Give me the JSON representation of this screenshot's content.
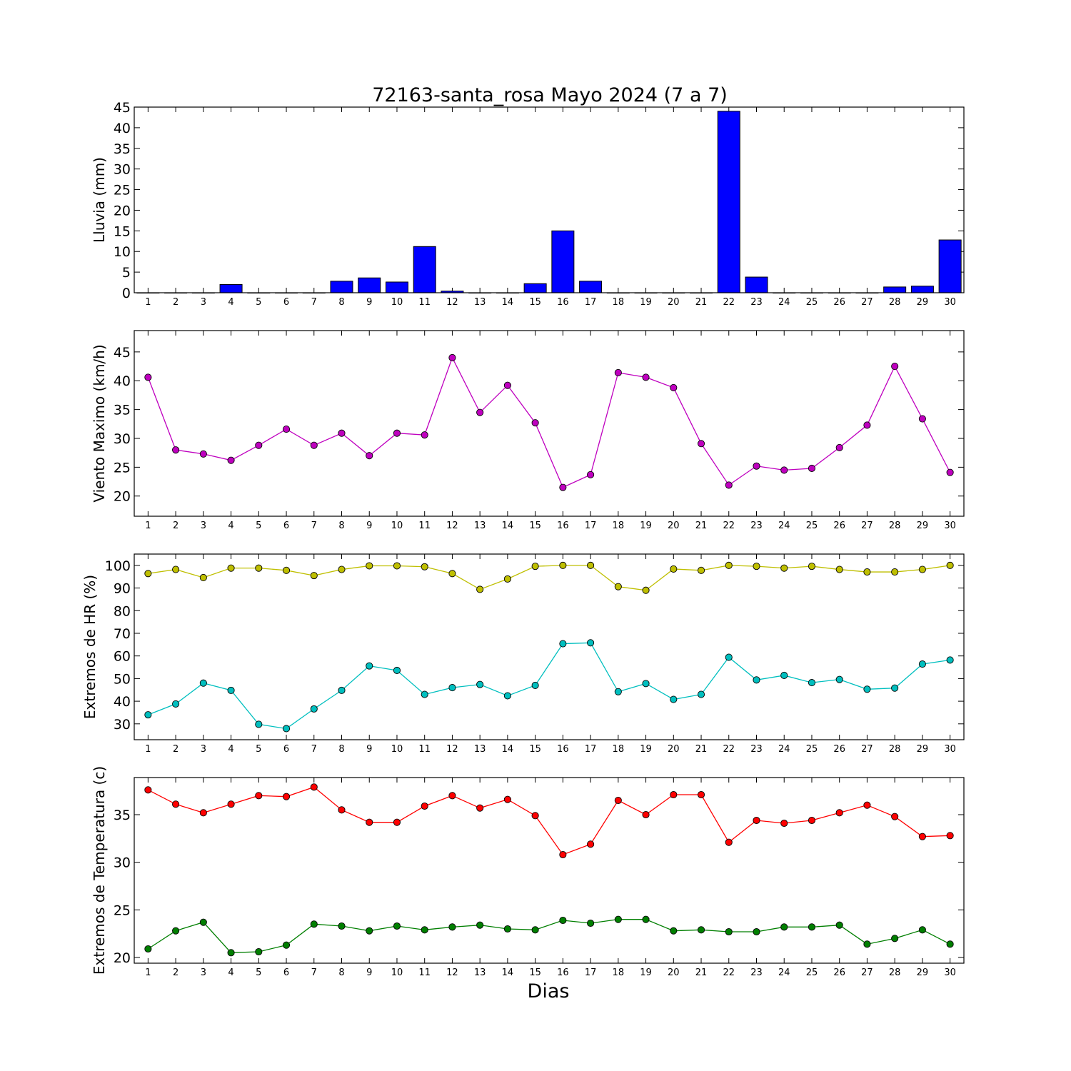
{
  "title": "72163-santa_rosa Mayo 2024  (7 a 7)",
  "xlabel": "Dias",
  "days": [
    1,
    2,
    3,
    4,
    5,
    6,
    7,
    8,
    9,
    10,
    11,
    12,
    13,
    14,
    15,
    16,
    17,
    18,
    19,
    20,
    21,
    22,
    23,
    24,
    25,
    26,
    27,
    28,
    29,
    30
  ],
  "chart_data": [
    {
      "type": "bar",
      "ylabel": "Lluvia (mm)",
      "ylim": [
        0,
        45
      ],
      "yticks": [
        0,
        5,
        10,
        15,
        20,
        25,
        30,
        35,
        40,
        45
      ],
      "series": [
        {
          "color": "#0000ff",
          "values": [
            0,
            0,
            0,
            2,
            0,
            0,
            0,
            2.8,
            3.6,
            2.6,
            11.2,
            0.4,
            0,
            0,
            2.2,
            15,
            2.8,
            0,
            0,
            0,
            0,
            44,
            3.8,
            0,
            0,
            0,
            0,
            1.4,
            1.6,
            12.8
          ]
        }
      ]
    },
    {
      "type": "line",
      "ylabel": "Viento Maximo (km/h)",
      "ylim": [
        16.5,
        48.7
      ],
      "yticks": [
        20,
        25,
        30,
        35,
        40,
        45
      ],
      "series": [
        {
          "color": "#bf00bf",
          "values": [
            40.6,
            28.0,
            27.3,
            26.2,
            28.8,
            31.6,
            28.8,
            30.9,
            27.0,
            30.9,
            30.6,
            44.0,
            34.5,
            39.2,
            32.7,
            21.5,
            23.7,
            41.4,
            40.6,
            38.8,
            29.1,
            21.9,
            25.2,
            24.5,
            24.8,
            28.4,
            32.3,
            42.5,
            33.4,
            24.1
          ]
        }
      ]
    },
    {
      "type": "line",
      "ylabel": "Extremos de HR (%)",
      "ylim": [
        23,
        105
      ],
      "yticks": [
        30,
        40,
        50,
        60,
        70,
        80,
        90,
        100
      ],
      "series": [
        {
          "color": "#bfbf00",
          "values": [
            96.4,
            98.2,
            94.6,
            98.8,
            98.8,
            97.8,
            95.5,
            98.2,
            99.8,
            99.8,
            99.4,
            96.4,
            89.4,
            94.0,
            99.6,
            100,
            100,
            90.6,
            89.0,
            98.4,
            97.8,
            100,
            99.6,
            98.8,
            99.6,
            98.2,
            97.1,
            97.1,
            98.2,
            100
          ]
        },
        {
          "color": "#00bfbf",
          "values": [
            34.0,
            38.8,
            48.0,
            44.8,
            29.8,
            27.9,
            36.6,
            44.8,
            55.6,
            53.6,
            43.0,
            46.0,
            47.4,
            42.4,
            47.0,
            65.4,
            65.8,
            44.2,
            47.8,
            40.8,
            43.0,
            59.4,
            49.4,
            51.4,
            48.2,
            49.6,
            45.3,
            45.8,
            56.4,
            58.2
          ]
        }
      ]
    },
    {
      "type": "line",
      "ylabel": "Extremos de Temperatura (c)",
      "ylim": [
        19.4,
        38.9
      ],
      "yticks": [
        20,
        25,
        30,
        35
      ],
      "series": [
        {
          "color": "#ff0000",
          "values": [
            37.6,
            36.1,
            35.2,
            36.1,
            37.0,
            36.9,
            37.9,
            35.5,
            34.2,
            34.2,
            35.9,
            37.0,
            35.7,
            36.6,
            34.9,
            30.8,
            31.9,
            36.5,
            35.0,
            37.1,
            37.1,
            32.1,
            34.4,
            34.1,
            34.4,
            35.2,
            36.0,
            34.8,
            32.7,
            32.8
          ]
        },
        {
          "color": "#007f00",
          "values": [
            20.9,
            22.8,
            23.7,
            20.5,
            20.6,
            21.3,
            23.5,
            23.3,
            22.8,
            23.3,
            22.9,
            23.2,
            23.4,
            23.0,
            22.9,
            23.9,
            23.6,
            24.0,
            24.0,
            22.8,
            22.9,
            22.7,
            22.7,
            23.2,
            23.2,
            23.4,
            21.4,
            22.0,
            22.9,
            21.4
          ]
        }
      ]
    }
  ]
}
